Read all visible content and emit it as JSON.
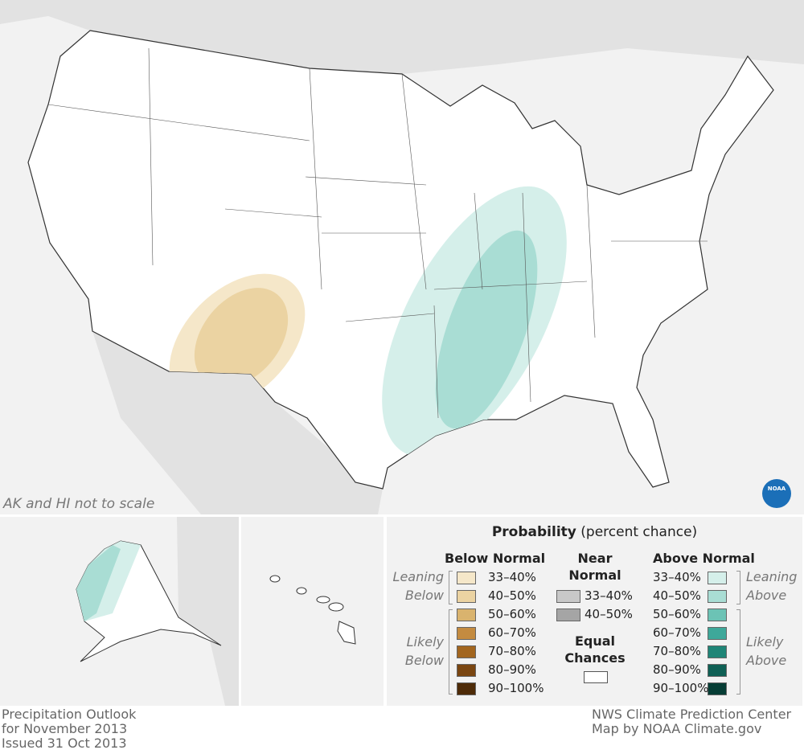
{
  "map_note": "AK and HI not to scale",
  "logo": "NOAA",
  "legend": {
    "title": "Probability",
    "subtitle": "(percent chance)",
    "below": {
      "heading": "Below Normal",
      "leaning": "Leaning Below",
      "likely": "Likely Below",
      "items": [
        {
          "label": "33–40%",
          "color": "#f5e7c9"
        },
        {
          "label": "40–50%",
          "color": "#ebd3a2"
        },
        {
          "label": "50–60%",
          "color": "#d9b36e"
        },
        {
          "label": "60–70%",
          "color": "#c48b40"
        },
        {
          "label": "70–80%",
          "color": "#a3661f"
        },
        {
          "label": "80–90%",
          "color": "#7a4611"
        },
        {
          "label": "90–100%",
          "color": "#4e2b08"
        }
      ]
    },
    "near": {
      "heading": "Near Normal",
      "items": [
        {
          "label": "33–40%",
          "color": "#c8c8c8"
        },
        {
          "label": "40–50%",
          "color": "#a5a5a5"
        }
      ],
      "equal": "Equal Chances",
      "equal_color": "#ffffff"
    },
    "above": {
      "heading": "Above Normal",
      "leaning": "Leaning Above",
      "likely": "Likely Above",
      "items": [
        {
          "label": "33–40%",
          "color": "#d5efea"
        },
        {
          "label": "40–50%",
          "color": "#a9ddd4"
        },
        {
          "label": "50–60%",
          "color": "#6cc3b5"
        },
        {
          "label": "60–70%",
          "color": "#3ea89a"
        },
        {
          "label": "70–80%",
          "color": "#1f8577"
        },
        {
          "label": "80–90%",
          "color": "#0f6055"
        },
        {
          "label": "90–100%",
          "color": "#063d35"
        }
      ]
    }
  },
  "footer": {
    "left": [
      "Precipitation Outlook",
      "for November 2013",
      "Issued 31 Oct 2013"
    ],
    "right": [
      "NWS Climate Prediction Center",
      "Map by NOAA Climate.gov"
    ]
  }
}
